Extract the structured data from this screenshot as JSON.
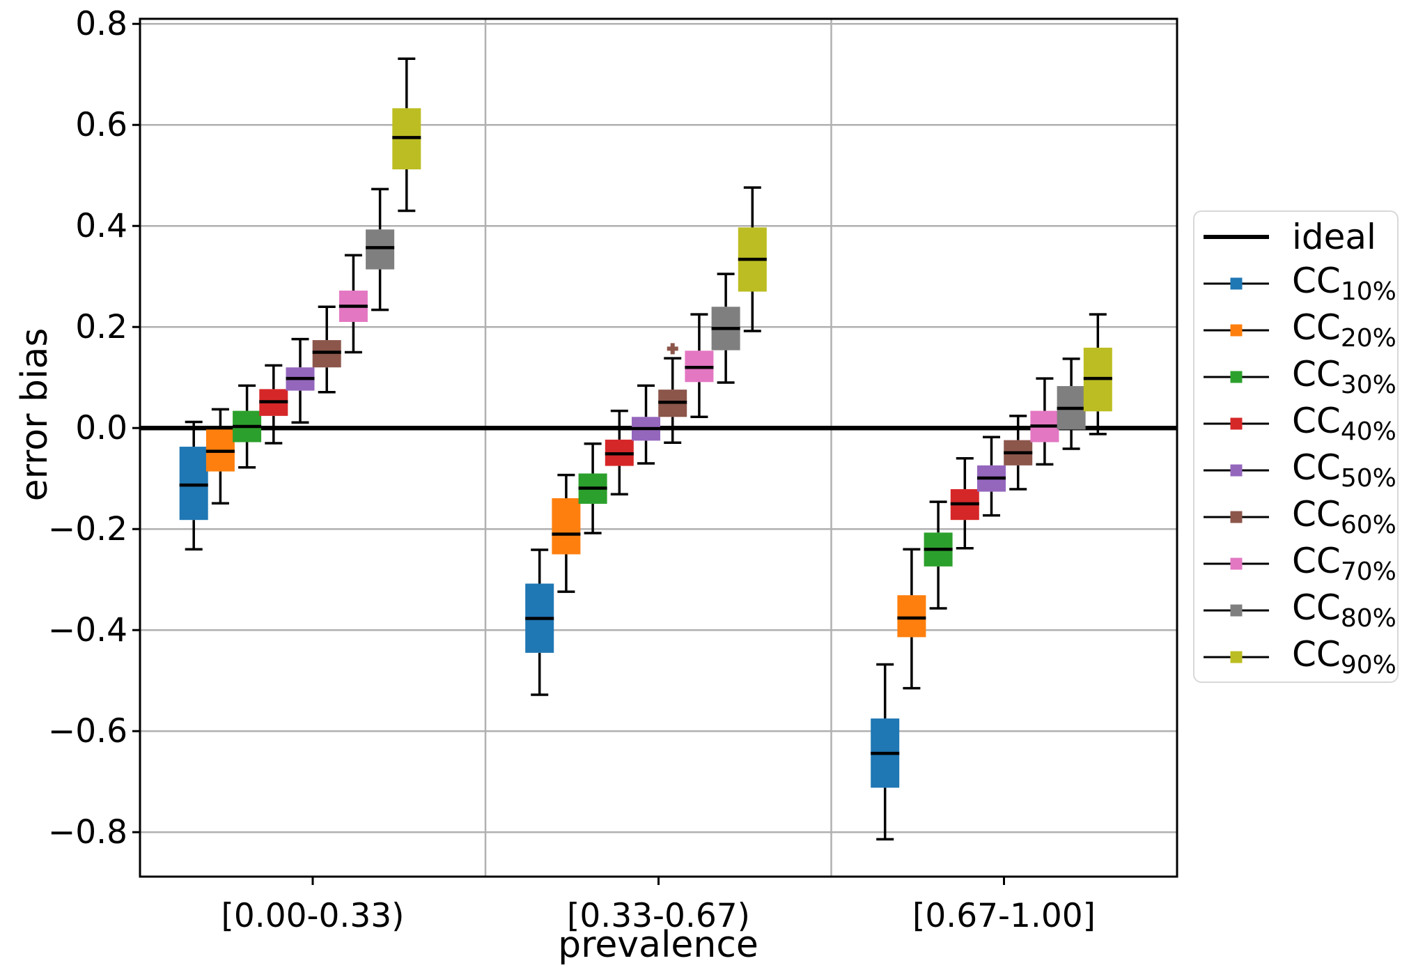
{
  "figure": {
    "background": "#ffffff"
  },
  "chart_data": {
    "type": "boxplot",
    "title": "",
    "xlabel": "prevalence",
    "ylabel": "error bias",
    "categories": [
      "[0.00-0.33)",
      "[0.33-0.67)",
      "[0.67-1.00]"
    ],
    "ylim": [
      -0.888,
      0.81
    ],
    "y_ticks": [
      0.8,
      0.6,
      0.4,
      0.2,
      0.0,
      -0.2,
      -0.4,
      -0.6,
      -0.8
    ],
    "y_tick_labels": [
      "0.8",
      "0.6",
      "0.4",
      "0.2",
      "0.0",
      "−0.2",
      "−0.4",
      "−0.6",
      "−0.8"
    ],
    "grid": true,
    "grid_color": "#b0b0b0",
    "ideal_line_y": 0.0,
    "legend_position": "center right",
    "series": [
      {
        "name": "CC10%",
        "label_main": "CC",
        "label_sub": "10%",
        "color": "#1f77b4",
        "boxes": [
          {
            "whislo": -0.24,
            "q1": -0.182,
            "med": -0.113,
            "q3": -0.037,
            "whishi": 0.012,
            "fliers": []
          },
          {
            "whislo": -0.528,
            "q1": -0.445,
            "med": -0.377,
            "q3": -0.308,
            "whishi": -0.241,
            "fliers": []
          },
          {
            "whislo": -0.814,
            "q1": -0.712,
            "med": -0.644,
            "q3": -0.575,
            "whishi": -0.468,
            "fliers": []
          }
        ]
      },
      {
        "name": "CC20%",
        "label_main": "CC",
        "label_sub": "20%",
        "color": "#ff7f0e",
        "boxes": [
          {
            "whislo": -0.149,
            "q1": -0.086,
            "med": -0.046,
            "q3": -0.003,
            "whishi": 0.037,
            "fliers": []
          },
          {
            "whislo": -0.324,
            "q1": -0.25,
            "med": -0.21,
            "q3": -0.139,
            "whishi": -0.093,
            "fliers": []
          },
          {
            "whislo": -0.515,
            "q1": -0.414,
            "med": -0.376,
            "q3": -0.331,
            "whishi": -0.24,
            "fliers": []
          }
        ]
      },
      {
        "name": "CC30%",
        "label_main": "CC",
        "label_sub": "30%",
        "color": "#2ca02c",
        "boxes": [
          {
            "whislo": -0.078,
            "q1": -0.028,
            "med": 0.003,
            "q3": 0.034,
            "whishi": 0.084,
            "fliers": []
          },
          {
            "whislo": -0.208,
            "q1": -0.15,
            "med": -0.119,
            "q3": -0.09,
            "whishi": -0.031,
            "fliers": []
          },
          {
            "whislo": -0.357,
            "q1": -0.274,
            "med": -0.24,
            "q3": -0.207,
            "whishi": -0.146,
            "fliers": []
          }
        ]
      },
      {
        "name": "CC40%",
        "label_main": "CC",
        "label_sub": "40%",
        "color": "#d62728",
        "boxes": [
          {
            "whislo": -0.03,
            "q1": 0.024,
            "med": 0.052,
            "q3": 0.077,
            "whishi": 0.124,
            "fliers": []
          },
          {
            "whislo": -0.131,
            "q1": -0.075,
            "med": -0.051,
            "q3": -0.023,
            "whishi": 0.034,
            "fliers": []
          },
          {
            "whislo": -0.238,
            "q1": -0.182,
            "med": -0.15,
            "q3": -0.121,
            "whishi": -0.06,
            "fliers": []
          }
        ]
      },
      {
        "name": "CC50%",
        "label_main": "CC",
        "label_sub": "50%",
        "color": "#9467bd",
        "boxes": [
          {
            "whislo": 0.011,
            "q1": 0.074,
            "med": 0.098,
            "q3": 0.12,
            "whishi": 0.176,
            "fliers": []
          },
          {
            "whislo": -0.07,
            "q1": -0.025,
            "med": -0.001,
            "q3": 0.022,
            "whishi": 0.084,
            "fliers": []
          },
          {
            "whislo": -0.173,
            "q1": -0.126,
            "med": -0.099,
            "q3": -0.074,
            "whishi": -0.018,
            "fliers": []
          }
        ]
      },
      {
        "name": "CC60%",
        "label_main": "CC",
        "label_sub": "60%",
        "color": "#8c564b",
        "boxes": [
          {
            "whislo": 0.071,
            "q1": 0.12,
            "med": 0.15,
            "q3": 0.174,
            "whishi": 0.24,
            "fliers": []
          },
          {
            "whislo": -0.029,
            "q1": 0.022,
            "med": 0.051,
            "q3": 0.076,
            "whishi": 0.138,
            "fliers": [
              0.157
            ]
          },
          {
            "whislo": -0.121,
            "q1": -0.074,
            "med": -0.049,
            "q3": -0.024,
            "whishi": 0.024,
            "fliers": []
          }
        ]
      },
      {
        "name": "CC70%",
        "label_main": "CC",
        "label_sub": "70%",
        "color": "#e377c2",
        "boxes": [
          {
            "whislo": 0.15,
            "q1": 0.21,
            "med": 0.241,
            "q3": 0.272,
            "whishi": 0.342,
            "fliers": []
          },
          {
            "whislo": 0.022,
            "q1": 0.091,
            "med": 0.12,
            "q3": 0.153,
            "whishi": 0.225,
            "fliers": []
          },
          {
            "whislo": -0.072,
            "q1": -0.028,
            "med": 0.004,
            "q3": 0.034,
            "whishi": 0.098,
            "fliers": []
          }
        ]
      },
      {
        "name": "CC80%",
        "label_main": "CC",
        "label_sub": "80%",
        "color": "#7f7f7f",
        "boxes": [
          {
            "whislo": 0.234,
            "q1": 0.314,
            "med": 0.357,
            "q3": 0.393,
            "whishi": 0.473,
            "fliers": []
          },
          {
            "whislo": 0.09,
            "q1": 0.154,
            "med": 0.197,
            "q3": 0.24,
            "whishi": 0.305,
            "fliers": []
          },
          {
            "whislo": -0.041,
            "q1": -0.003,
            "med": 0.039,
            "q3": 0.083,
            "whishi": 0.137,
            "fliers": []
          }
        ]
      },
      {
        "name": "CC90%",
        "label_main": "CC",
        "label_sub": "90%",
        "color": "#bcbd22",
        "boxes": [
          {
            "whislo": 0.43,
            "q1": 0.512,
            "med": 0.575,
            "q3": 0.633,
            "whishi": 0.731,
            "fliers": []
          },
          {
            "whislo": 0.192,
            "q1": 0.27,
            "med": 0.334,
            "q3": 0.397,
            "whishi": 0.476,
            "fliers": []
          },
          {
            "whislo": -0.012,
            "q1": 0.033,
            "med": 0.098,
            "q3": 0.159,
            "whishi": 0.225,
            "fliers": []
          }
        ]
      }
    ]
  },
  "legend": {
    "ideal_label": "ideal"
  }
}
